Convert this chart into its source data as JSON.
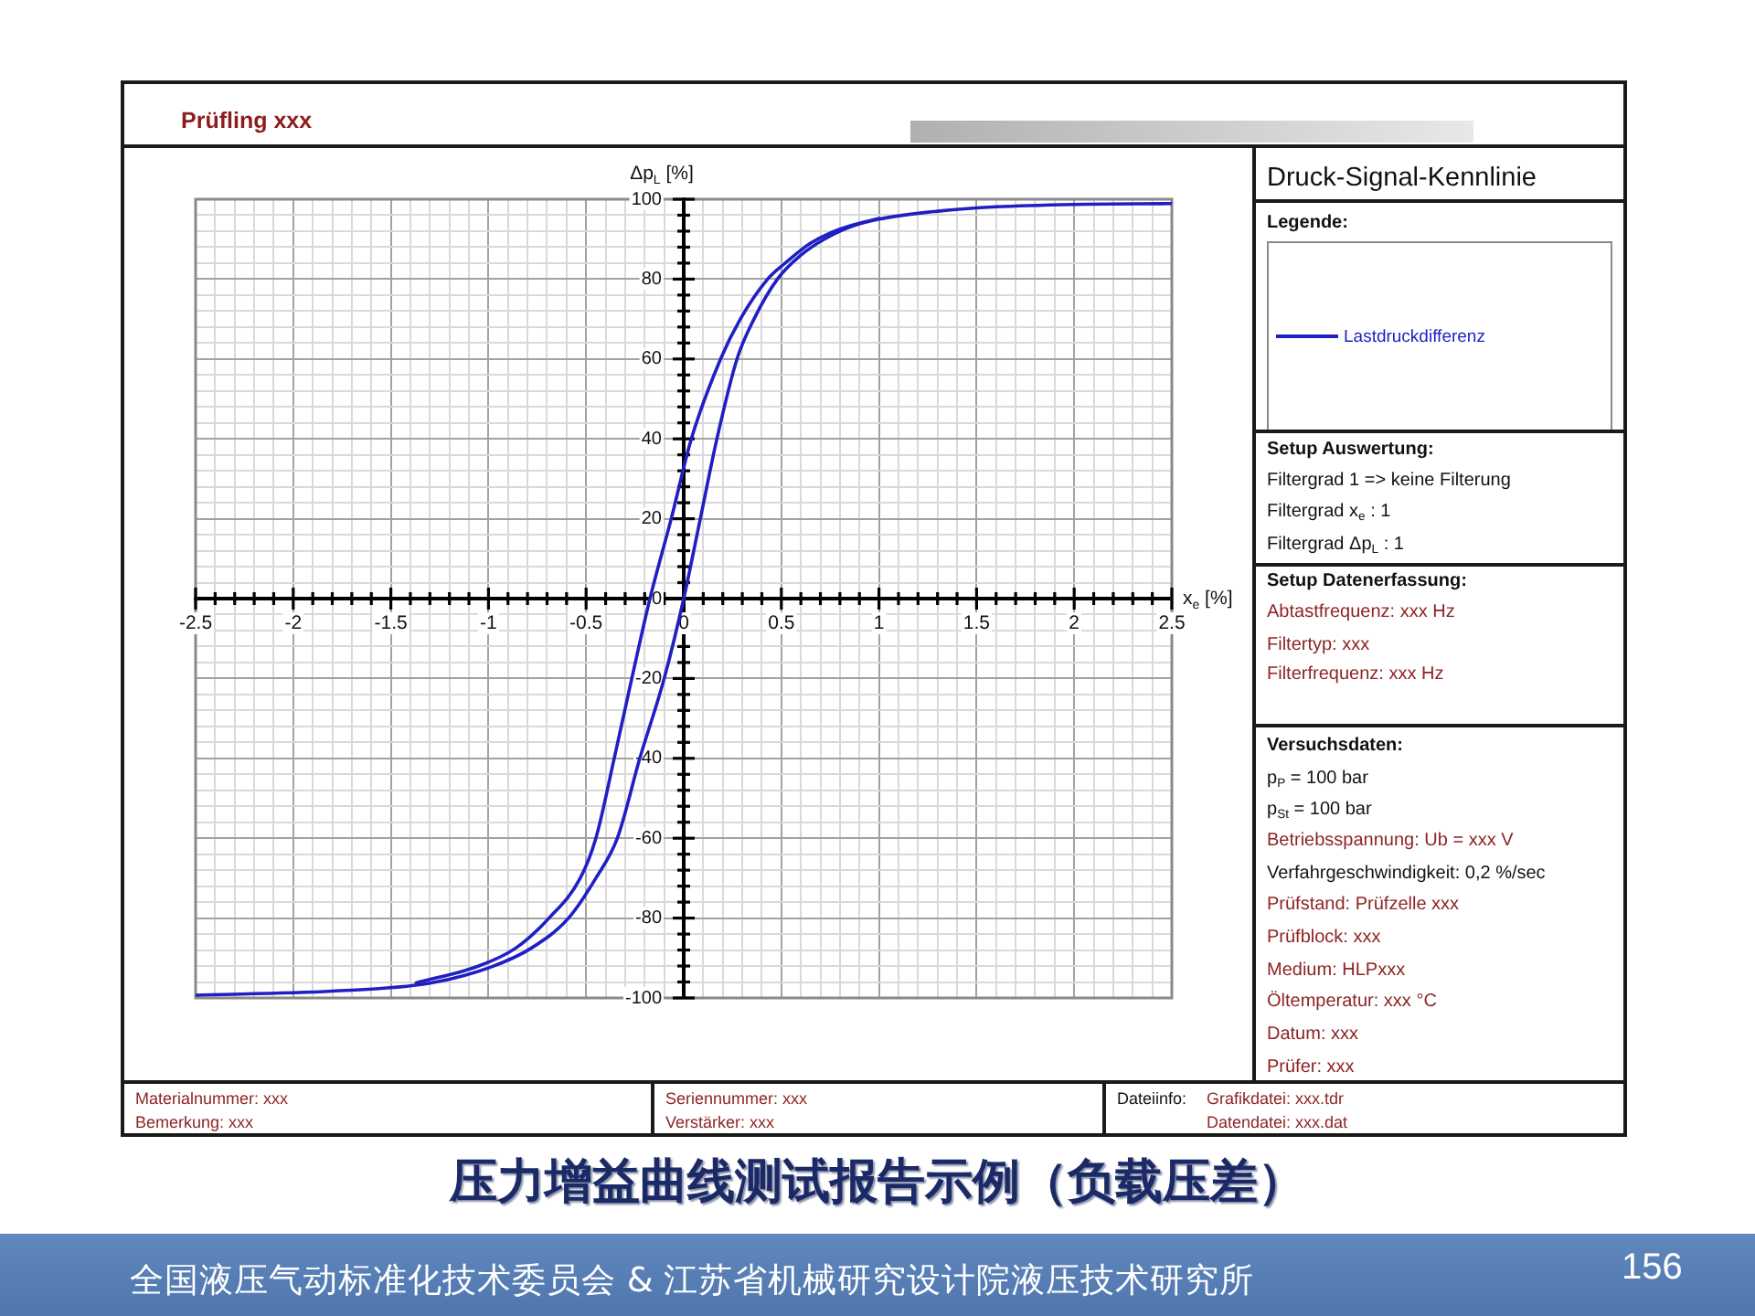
{
  "chart_data": {
    "type": "line",
    "title": "压力增益曲线测试报告示例（负载压差）",
    "subtitle": "Druck-Signal-Kennlinie",
    "xlabel": "x$_{e}$ [%]",
    "ylabel": "Δp$_{L}$ [%]",
    "legend_title": "Legende:",
    "legend": "right",
    "grid": true,
    "xlim": [
      -2.5,
      2.5
    ],
    "ylim": [
      -100,
      100
    ],
    "xticks": [
      -2.5,
      {
        "value": -2.4,
        "label": null
      },
      {
        "value": -2.3,
        "label": null
      },
      {
        "value": -2.2,
        "label": null
      },
      {
        "value": -2.1,
        "label": null
      },
      -2,
      {
        "value": -1.9,
        "label": null
      },
      {
        "value": -1.8,
        "label": null
      },
      {
        "value": -1.7,
        "label": null
      },
      {
        "value": -1.6,
        "label": null
      },
      -1.5,
      {
        "value": -1.4,
        "label": null
      },
      {
        "value": -1.3,
        "label": null
      },
      {
        "value": -1.2,
        "label": null
      },
      {
        "value": -1.1,
        "label": null
      },
      -1,
      {
        "value": -0.9,
        "label": null
      },
      {
        "value": -0.8,
        "label": null
      },
      {
        "value": -0.7,
        "label": null
      },
      {
        "value": -0.6,
        "label": null
      },
      -0.5,
      {
        "value": -0.4,
        "label": null
      },
      {
        "value": -0.3,
        "label": null
      },
      {
        "value": -0.2,
        "label": null
      },
      {
        "value": -0.1,
        "label": null
      },
      0,
      {
        "value": 0.1,
        "label": null
      },
      {
        "value": 0.2,
        "label": null
      },
      {
        "value": 0.3,
        "label": null
      },
      {
        "value": 0.4,
        "label": null
      },
      0.5,
      {
        "value": 0.6,
        "label": null
      },
      {
        "value": 0.7,
        "label": null
      },
      {
        "value": 0.8,
        "label": null
      },
      {
        "value": 0.9,
        "label": null
      },
      1,
      {
        "value": 1.1,
        "label": null
      },
      {
        "value": 1.2,
        "label": null
      },
      {
        "value": 1.3,
        "label": null
      },
      {
        "value": 1.4,
        "label": null
      },
      1.5,
      {
        "value": 1.6,
        "label": null
      },
      {
        "value": 1.7,
        "label": null
      },
      {
        "value": 1.8,
        "label": null
      },
      {
        "value": 1.9,
        "label": null
      },
      2,
      {
        "value": 2.1,
        "label": null
      },
      {
        "value": 2.2,
        "label": null
      },
      {
        "value": 2.3,
        "label": null
      },
      {
        "value": 2.4,
        "label": null
      },
      2.5
    ],
    "yticks": [
      -100,
      {
        "value": -96,
        "label": null
      },
      {
        "value": -92,
        "label": null
      },
      {
        "value": -88,
        "label": null
      },
      {
        "value": -84,
        "label": null
      },
      -80,
      {
        "value": -76,
        "label": null
      },
      {
        "value": -72,
        "label": null
      },
      {
        "value": -68,
        "label": null
      },
      {
        "value": -64,
        "label": null
      },
      -60,
      {
        "value": -56,
        "label": null
      },
      {
        "value": -52,
        "label": null
      },
      {
        "value": -48,
        "label": null
      },
      {
        "value": -44,
        "label": null
      },
      -40,
      {
        "value": -36,
        "label": null
      },
      {
        "value": -32,
        "label": null
      },
      {
        "value": -28,
        "label": null
      },
      {
        "value": -24,
        "label": null
      },
      -20,
      {
        "value": -16,
        "label": null
      },
      {
        "value": -12,
        "label": null
      },
      {
        "value": -8,
        "label": null
      },
      {
        "value": -4,
        "label": null
      },
      0,
      {
        "value": 4,
        "label": null
      },
      {
        "value": 8,
        "label": null
      },
      {
        "value": 12,
        "label": null
      },
      {
        "value": 16,
        "label": null
      },
      20,
      {
        "value": 24,
        "label": null
      },
      {
        "value": 28,
        "label": null
      },
      {
        "value": 32,
        "label": null
      },
      {
        "value": 36,
        "label": null
      },
      40,
      {
        "value": 44,
        "label": null
      },
      {
        "value": 48,
        "label": null
      },
      {
        "value": 52,
        "label": null
      },
      {
        "value": 56,
        "label": null
      },
      60,
      {
        "value": 64,
        "label": null
      },
      {
        "value": 68,
        "label": null
      },
      {
        "value": 72,
        "label": null
      },
      {
        "value": 76,
        "label": null
      },
      80,
      {
        "value": 84,
        "label": null
      },
      {
        "value": 88,
        "label": null
      },
      {
        "value": 92,
        "label": null
      },
      {
        "value": 96,
        "label": null
      },
      100
    ],
    "series": [
      {
        "name": "Lastdruckdifferenz",
        "color": "#1f1fc4",
        "x": [
          -2.5,
          -1.8,
          -1.3,
          -0.99,
          -0.78,
          -0.59,
          -0.45,
          -0.34,
          -0.225,
          -0.1,
          0,
          0.085,
          0.17,
          0.273,
          0.36,
          0.48,
          0.6,
          0.72,
          0.85,
          1.0,
          1.3,
          1.6,
          2.0,
          2.5
        ],
        "values": [
          -99.3,
          -98.3,
          -96.3,
          -92.3,
          -87.5,
          -80,
          -70,
          -60,
          -40,
          -20,
          0,
          20,
          40,
          60,
          70,
          80,
          86,
          90,
          93,
          95,
          97,
          98.1,
          98.7,
          98.9
        ]
      },
      {
        "color": "#1f1fc4",
        "x": [
          -1.37,
          -1.05,
          -0.86,
          -0.69,
          -0.53,
          -0.45,
          -0.356,
          -0.266,
          -0.173,
          -0.064,
          0.039,
          0.189,
          0.29,
          0.43,
          0.52,
          0.65,
          0.8,
          1.0
        ],
        "values": [
          -96.2,
          -92,
          -87.5,
          -80,
          -70,
          -60,
          -40,
          -20,
          0,
          20,
          40,
          60,
          70,
          80,
          84,
          89,
          92.5,
          95.2
        ]
      }
    ],
    "annotations": [
      "Prüfling xxx",
      "Setup Auswertung:",
      "Filtergrad 1 => keine Filterung",
      "Filtergrad x$_{e}$ : 1",
      "Filtergrad Δp$_{L}$ : 1",
      "Setup Datenerfassung:",
      "Abtastfrequenz: xxx Hz",
      "Filtertyp:  xxx",
      "Filterfrequenz:  xxx Hz",
      "Versuchsdaten:",
      "p$_{P}$ = 100 bar",
      "p$_{St}$ = 100 bar",
      "Betriebsspannung: Ub = xxx V",
      "Verfahrgeschwindigkeit: 0,2 %/sec",
      "Prüfstand: Prüfzelle xxx",
      "Prüfblock: xxx",
      "Medium: HLPxxx",
      "Öltemperatur: xxx °C",
      "Datum: xxx",
      "Prüfer: xxx",
      "Materialnummer: xxx",
      "Bemerkung: xxx",
      "Seriennummer: xxx",
      "Verstärker: xxx",
      "Dateiinfo:",
      "Grafikdatei: xxx.tdr",
      "Datendatei: xxx.dat",
      "全国液压气动标准化技术委员会 & 江苏省机械研究设计院液压技术研究所",
      "156"
    ]
  }
}
